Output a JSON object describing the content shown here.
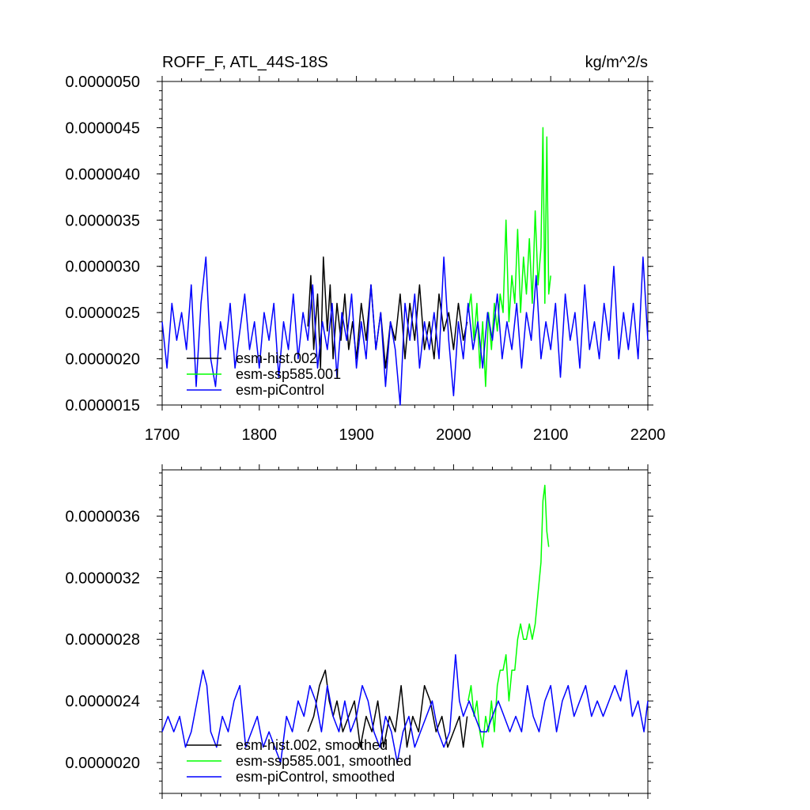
{
  "chart_data": [
    {
      "type": "line",
      "title": "ROFF_F, ATL_44S-18S",
      "units": "kg/m^2/s",
      "xlim": [
        1700,
        2200
      ],
      "ylim": [
        1.5e-06,
        5e-06
      ],
      "xticks": [
        "1700",
        "1800",
        "1900",
        "2000",
        "2100",
        "2200"
      ],
      "xtick_values": [
        1700,
        1800,
        1900,
        2000,
        2100,
        2200
      ],
      "yticks": [
        "0.0000015",
        "0.0000020",
        "0.0000025",
        "0.0000030",
        "0.0000035",
        "0.0000040",
        "0.0000045",
        "0.0000050"
      ],
      "ytick_values": [
        1.5e-06,
        2e-06,
        2.5e-06,
        3e-06,
        3.5e-06,
        4e-06,
        4.5e-06,
        5e-06
      ],
      "legend_position": "bottom-left",
      "series": [
        {
          "name": "esm-hist.002",
          "color": "#000000",
          "x": [
            1850,
            1853,
            1856,
            1860,
            1863,
            1866,
            1870,
            1873,
            1876,
            1880,
            1884,
            1888,
            1892,
            1896,
            1900,
            1905,
            1910,
            1915,
            1920,
            1925,
            1930,
            1935,
            1940,
            1945,
            1950,
            1955,
            1960,
            1965,
            1970,
            1975,
            1980,
            1985,
            1990,
            1995,
            2000,
            2005,
            2010,
            2014
          ],
          "values": [
            2.35e-06,
            2.9e-06,
            2.1e-06,
            2.7e-06,
            1.9e-06,
            3.1e-06,
            2.3e-06,
            2.8e-06,
            2e-06,
            2.6e-06,
            2.2e-06,
            2.7e-06,
            2.1e-06,
            2.4e-06,
            2e-06,
            2.6e-06,
            2.2e-06,
            2.8e-06,
            2.1e-06,
            2.5e-06,
            1.9e-06,
            2.4e-06,
            2.2e-06,
            2.7e-06,
            2e-06,
            2.6e-06,
            2.2e-06,
            2.8e-06,
            2.1e-06,
            2.4e-06,
            2e-06,
            2.7e-06,
            2.3e-06,
            2.5e-06,
            2.1e-06,
            2.6e-06,
            2.2e-06,
            2.4e-06
          ]
        },
        {
          "name": "esm-ssp585.001",
          "color": "#00ff00",
          "x": [
            2015,
            2018,
            2021,
            2024,
            2027,
            2030,
            2033,
            2036,
            2039,
            2042,
            2045,
            2048,
            2051,
            2054,
            2057,
            2060,
            2063,
            2066,
            2069,
            2072,
            2075,
            2078,
            2081,
            2084,
            2087,
            2090,
            2092,
            2094,
            2096,
            2098,
            2100
          ],
          "values": [
            2.5e-06,
            2.7e-06,
            2.2e-06,
            2.6e-06,
            1.9e-06,
            2.4e-06,
            1.7e-06,
            2.5e-06,
            2.1e-06,
            2.6e-06,
            2.3e-06,
            2.7e-06,
            2.5e-06,
            3.5e-06,
            2.4e-06,
            2.9e-06,
            2.6e-06,
            3.4e-06,
            2.5e-06,
            3.1e-06,
            2.7e-06,
            3.3e-06,
            2.6e-06,
            3.6e-06,
            2.8e-06,
            3.2e-06,
            4.5e-06,
            2.6e-06,
            4.4e-06,
            2.7e-06,
            2.9e-06
          ]
        },
        {
          "name": "esm-piControl",
          "color": "#0000ff",
          "x": [
            1700,
            1705,
            1710,
            1715,
            1720,
            1725,
            1730,
            1735,
            1740,
            1745,
            1750,
            1755,
            1760,
            1765,
            1770,
            1775,
            1780,
            1785,
            1790,
            1795,
            1800,
            1805,
            1810,
            1815,
            1820,
            1825,
            1830,
            1835,
            1840,
            1845,
            1850,
            1855,
            1860,
            1865,
            1870,
            1875,
            1880,
            1885,
            1890,
            1895,
            1900,
            1905,
            1910,
            1915,
            1920,
            1925,
            1930,
            1935,
            1940,
            1945,
            1950,
            1955,
            1960,
            1965,
            1970,
            1975,
            1980,
            1985,
            1990,
            1995,
            2000,
            2005,
            2010,
            2015,
            2020,
            2025,
            2030,
            2035,
            2040,
            2045,
            2050,
            2055,
            2060,
            2065,
            2070,
            2075,
            2080,
            2085,
            2090,
            2095,
            2100,
            2105,
            2110,
            2115,
            2120,
            2125,
            2130,
            2135,
            2140,
            2145,
            2150,
            2155,
            2160,
            2165,
            2170,
            2175,
            2180,
            2185,
            2190,
            2195,
            2200
          ],
          "values": [
            2.4e-06,
            1.9e-06,
            2.6e-06,
            2.2e-06,
            2.5e-06,
            2.1e-06,
            2.8e-06,
            1.7e-06,
            2.6e-06,
            3.1e-06,
            2e-06,
            1.7e-06,
            2.4e-06,
            2.1e-06,
            2.6e-06,
            1.9e-06,
            2.3e-06,
            2.7e-06,
            2.1e-06,
            2.4e-06,
            1.9e-06,
            2.5e-06,
            2.2e-06,
            2.6e-06,
            1.8e-06,
            2.4e-06,
            2.1e-06,
            2.7e-06,
            2e-06,
            2.5e-06,
            2.2e-06,
            2.8e-06,
            1.9e-06,
            2.4e-06,
            2.1e-06,
            2.6e-06,
            1.8e-06,
            2.5e-06,
            2.2e-06,
            2.7e-06,
            1.9e-06,
            2.4e-06,
            2e-06,
            2.8e-06,
            2.1e-06,
            2.5e-06,
            1.7e-06,
            2.4e-06,
            2.1e-06,
            1.5e-06,
            2.6e-06,
            2.2e-06,
            2.7e-06,
            1.9e-06,
            2.4e-06,
            2.1e-06,
            2.5e-06,
            2e-06,
            3.1e-06,
            2.2e-06,
            1.6e-06,
            2.4e-06,
            2e-06,
            2.6e-06,
            2.1e-06,
            2.4e-06,
            1.9e-06,
            2.5e-06,
            2.2e-06,
            2.7e-06,
            2e-06,
            2.4e-06,
            2.1e-06,
            2.6e-06,
            1.9e-06,
            2.5e-06,
            2.2e-06,
            2.9e-06,
            2e-06,
            2.4e-06,
            2.1e-06,
            2.6e-06,
            1.8e-06,
            2.7e-06,
            2.2e-06,
            2.5e-06,
            1.9e-06,
            2.8e-06,
            2.1e-06,
            2.4e-06,
            2e-06,
            2.6e-06,
            2.2e-06,
            3e-06,
            2e-06,
            2.5e-06,
            2.1e-06,
            2.6e-06,
            2e-06,
            3.1e-06,
            2.2e-06
          ]
        }
      ]
    },
    {
      "type": "line",
      "title": "",
      "xlim": [
        1700,
        2200
      ],
      "ylim": [
        1.8e-06,
        3.9e-06
      ],
      "yticks": [
        "0.0000020",
        "0.0000024",
        "0.0000028",
        "0.0000032",
        "0.0000036"
      ],
      "ytick_values": [
        2e-06,
        2.4e-06,
        2.8e-06,
        3.2e-06,
        3.6e-06
      ],
      "legend_position": "bottom-left",
      "series": [
        {
          "name": "esm-hist.002, smoothed",
          "color": "#000000",
          "x": [
            1850,
            1856,
            1862,
            1868,
            1872,
            1876,
            1880,
            1886,
            1892,
            1898,
            1904,
            1910,
            1916,
            1922,
            1928,
            1934,
            1940,
            1946,
            1952,
            1958,
            1964,
            1970,
            1976,
            1982,
            1988,
            1994,
            2000,
            2006,
            2010,
            2014
          ],
          "values": [
            2.2e-06,
            2.3e-06,
            2.5e-06,
            2.6e-06,
            2.4e-06,
            2.3e-06,
            2.4e-06,
            2.2e-06,
            2.3e-06,
            2.4e-06,
            2.1e-06,
            2.3e-06,
            2.2e-06,
            2.4e-06,
            2.1e-06,
            2.3e-06,
            2.2e-06,
            2.5e-06,
            2.1e-06,
            2.3e-06,
            2.2e-06,
            2.5e-06,
            2.4e-06,
            2.2e-06,
            2.3e-06,
            2.1e-06,
            2.2e-06,
            2.3e-06,
            2.1e-06,
            2.3e-06
          ]
        },
        {
          "name": "esm-ssp585.001, smoothed",
          "color": "#00ff00",
          "x": [
            2015,
            2018,
            2021,
            2024,
            2027,
            2030,
            2033,
            2036,
            2039,
            2042,
            2045,
            2048,
            2051,
            2054,
            2057,
            2060,
            2063,
            2066,
            2069,
            2072,
            2075,
            2078,
            2081,
            2084,
            2087,
            2090,
            2092,
            2094,
            2096,
            2098
          ],
          "values": [
            2.4e-06,
            2.5e-06,
            2.3e-06,
            2.4e-06,
            2.2e-06,
            2.1e-06,
            2.3e-06,
            2.2e-06,
            2.4e-06,
            2.2e-06,
            2.5e-06,
            2.6e-06,
            2.6e-06,
            2.7e-06,
            2.4e-06,
            2.6e-06,
            2.6e-06,
            2.8e-06,
            2.9e-06,
            2.8e-06,
            2.8e-06,
            2.9e-06,
            2.8e-06,
            2.9e-06,
            3.1e-06,
            3.3e-06,
            3.7e-06,
            3.8e-06,
            3.5e-06,
            3.4e-06
          ]
        },
        {
          "name": "esm-piControl, smoothed",
          "color": "#0000ff",
          "x": [
            1700,
            1706,
            1712,
            1718,
            1724,
            1730,
            1736,
            1742,
            1746,
            1750,
            1756,
            1762,
            1768,
            1774,
            1780,
            1786,
            1792,
            1798,
            1804,
            1810,
            1816,
            1822,
            1828,
            1834,
            1840,
            1846,
            1852,
            1858,
            1864,
            1870,
            1876,
            1882,
            1888,
            1894,
            1900,
            1906,
            1912,
            1918,
            1924,
            1930,
            1936,
            1942,
            1948,
            1954,
            1960,
            1966,
            1972,
            1978,
            1984,
            1990,
            1996,
            2002,
            2006,
            2010,
            2016,
            2022,
            2028,
            2034,
            2040,
            2046,
            2052,
            2058,
            2064,
            2070,
            2076,
            2082,
            2088,
            2094,
            2100,
            2106,
            2112,
            2118,
            2124,
            2130,
            2136,
            2142,
            2148,
            2154,
            2160,
            2166,
            2172,
            2178,
            2184,
            2190,
            2196,
            2200
          ],
          "values": [
            2.2e-06,
            2.3e-06,
            2.2e-06,
            2.3e-06,
            2.1e-06,
            2.2e-06,
            2.4e-06,
            2.6e-06,
            2.5e-06,
            2.2e-06,
            2.1e-06,
            2.3e-06,
            2.2e-06,
            2.4e-06,
            2.5e-06,
            2.1e-06,
            2.2e-06,
            2.3e-06,
            2.1e-06,
            2.2e-06,
            2.1e-06,
            2e-06,
            2.3e-06,
            2.2e-06,
            2.4e-06,
            2.3e-06,
            2.5e-06,
            2.4e-06,
            2.2e-06,
            2.5e-06,
            2.3e-06,
            2.2e-06,
            2.4e-06,
            2.2e-06,
            2.3e-06,
            2.5e-06,
            2.4e-06,
            2.2e-06,
            2.1e-06,
            2.3e-06,
            2.2e-06,
            2e-06,
            2.2e-06,
            2.3e-06,
            2.1e-06,
            2.2e-06,
            2.3e-06,
            2.4e-06,
            2.2e-06,
            2.1e-06,
            2.2e-06,
            2.7e-06,
            2.4e-06,
            2.3e-06,
            2.4e-06,
            2.3e-06,
            2.2e-06,
            2.2e-06,
            2.3e-06,
            2.4e-06,
            2.3e-06,
            2.2e-06,
            2.3e-06,
            2.2e-06,
            2.5e-06,
            2.3e-06,
            2.2e-06,
            2.4e-06,
            2.5e-06,
            2.2e-06,
            2.4e-06,
            2.5e-06,
            2.3e-06,
            2.4e-06,
            2.5e-06,
            2.3e-06,
            2.4e-06,
            2.3e-06,
            2.4e-06,
            2.5e-06,
            2.4e-06,
            2.6e-06,
            2.3e-06,
            2.4e-06,
            2.2e-06,
            2.4e-06
          ]
        }
      ]
    }
  ]
}
